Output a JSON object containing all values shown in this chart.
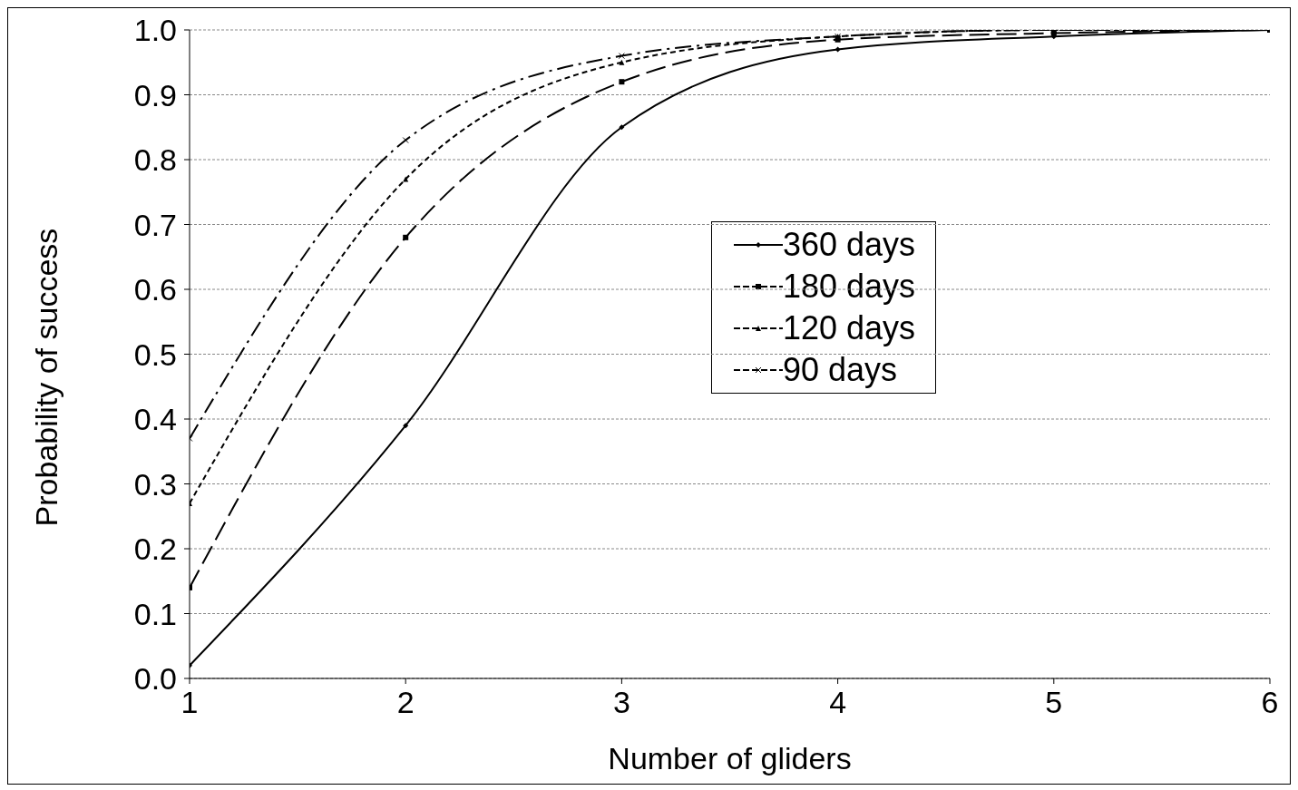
{
  "chart_data": {
    "type": "line",
    "xlabel": "Number of gliders",
    "ylabel": "Probability of success",
    "x": [
      1,
      2,
      3,
      4,
      5,
      6
    ],
    "xlim": [
      1,
      6
    ],
    "xticks": [
      1,
      2,
      3,
      4,
      5,
      6
    ],
    "ylim": [
      0,
      1
    ],
    "yticks": [
      {
        "value": 0,
        "label": "0.0"
      },
      {
        "value": 0.1,
        "label": "0.1"
      },
      {
        "value": 0.2,
        "label": "0.2"
      },
      {
        "value": 0.3,
        "label": "0.3"
      },
      {
        "value": 0.4,
        "label": "0.4"
      },
      {
        "value": 0.5,
        "label": "0.5"
      },
      {
        "value": 0.6,
        "label": "0.6"
      },
      {
        "value": 0.7,
        "label": "0.7"
      },
      {
        "value": 0.8,
        "label": "0.8"
      },
      {
        "value": 0.9,
        "label": "0.9"
      },
      {
        "value": 1,
        "label": "1.0"
      }
    ],
    "grid": "y",
    "legend": "center right",
    "series": [
      {
        "name": "360 days",
        "color": "#000000",
        "line_style": "solid",
        "marker": "diamond",
        "values": [
          0.02,
          0.39,
          0.85,
          0.97,
          0.99,
          1.0
        ]
      },
      {
        "name": "180 days",
        "color": "#000000",
        "line_style": "dashed",
        "marker": "square",
        "values": [
          0.14,
          0.68,
          0.92,
          0.985,
          0.995,
          1.0
        ]
      },
      {
        "name": "120 days",
        "color": "#000000",
        "line_style": "dotted",
        "marker": "triangle",
        "values": [
          0.27,
          0.77,
          0.95,
          0.99,
          1.0,
          1.0
        ]
      },
      {
        "name": "90 days",
        "color": "#000000",
        "line_style": "dashdot",
        "marker": "cross",
        "values": [
          0.37,
          0.83,
          0.96,
          0.99,
          1.0,
          1.0
        ]
      }
    ]
  }
}
